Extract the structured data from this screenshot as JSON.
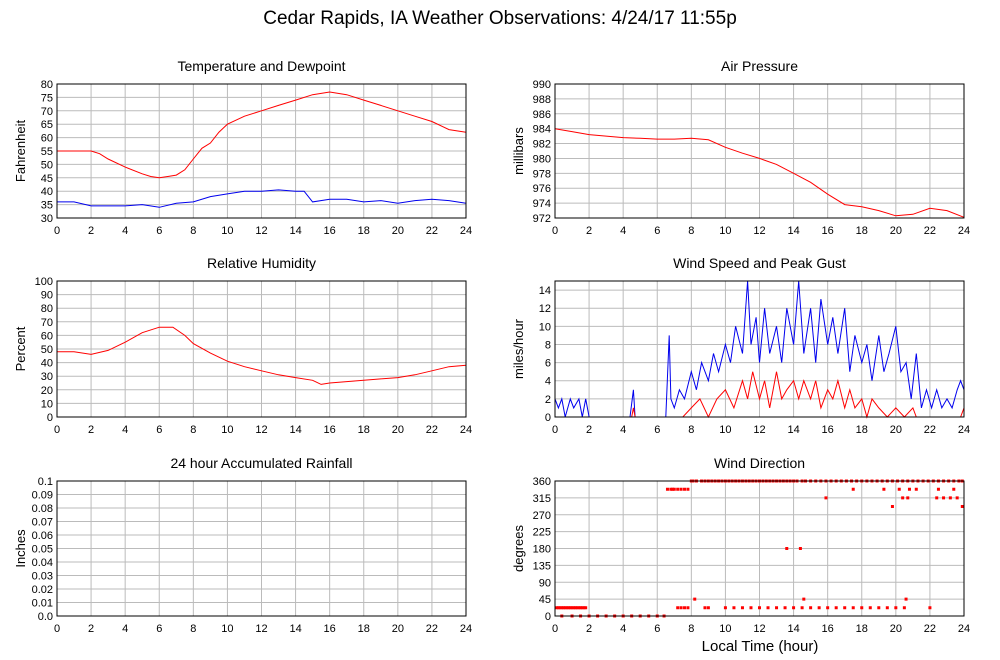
{
  "page": {
    "title": "Cedar Rapids, IA Weather Observations: 4/24/17 11:55p",
    "xlabel": "Local Time (hour)"
  },
  "colors": {
    "red": "#ff0000",
    "blue": "#0000ee",
    "grid": "#bbbbbb",
    "frame": "#000000"
  },
  "chart_data": [
    {
      "id": "temp",
      "type": "line",
      "title": "Temperature and Dewpoint",
      "ylabel": "Fahrenheit",
      "xlim": [
        0,
        24
      ],
      "ylim": [
        30,
        80
      ],
      "yticks": [
        30,
        35,
        40,
        45,
        50,
        55,
        60,
        65,
        70,
        75,
        80
      ],
      "xticks": [
        0,
        2,
        4,
        6,
        8,
        10,
        12,
        14,
        16,
        18,
        20,
        22,
        24
      ],
      "grid": true,
      "series": [
        {
          "color": "red",
          "x": [
            0,
            1,
            2,
            2.5,
            3,
            4,
            5,
            5.5,
            6,
            6.5,
            7,
            7.5,
            8,
            8.5,
            9,
            9.5,
            10,
            11,
            12,
            13,
            14,
            15,
            16,
            17,
            18,
            19,
            20,
            21,
            22,
            23,
            24
          ],
          "y": [
            55,
            55,
            55,
            54,
            52,
            49,
            46.5,
            45.5,
            45,
            45.5,
            46,
            48,
            52,
            56,
            58,
            62,
            65,
            68,
            70,
            72,
            74,
            76,
            77,
            76,
            74,
            72,
            70,
            68,
            66,
            63,
            62
          ]
        },
        {
          "color": "blue",
          "x": [
            0,
            1,
            2,
            3,
            4,
            5,
            6,
            7,
            8,
            9,
            10,
            11,
            12,
            13,
            14,
            14.5,
            15,
            16,
            17,
            18,
            19,
            20,
            21,
            22,
            23,
            24
          ],
          "y": [
            36,
            36,
            34.5,
            34.5,
            34.5,
            35,
            34,
            35.5,
            36,
            38,
            39,
            40,
            40,
            40.5,
            40,
            40,
            36,
            37,
            37,
            36,
            36.5,
            35.5,
            36.5,
            37,
            36.5,
            35.5
          ]
        }
      ]
    },
    {
      "id": "pressure",
      "type": "line",
      "title": "Air Pressure",
      "ylabel": "millibars",
      "xlim": [
        0,
        24
      ],
      "ylim": [
        972,
        990
      ],
      "yticks": [
        972,
        974,
        976,
        978,
        980,
        982,
        984,
        986,
        988,
        990
      ],
      "xticks": [
        0,
        2,
        4,
        6,
        8,
        10,
        12,
        14,
        16,
        18,
        20,
        22,
        24
      ],
      "grid": true,
      "series": [
        {
          "color": "red",
          "x": [
            0,
            1,
            2,
            3,
            4,
            5,
            6,
            7,
            8,
            9,
            10,
            11,
            12,
            13,
            14,
            15,
            16,
            17,
            18,
            19,
            20,
            21,
            22,
            23,
            24
          ],
          "y": [
            984,
            983.6,
            983.2,
            983,
            982.8,
            982.7,
            982.6,
            982.6,
            982.7,
            982.5,
            981.5,
            980.7,
            980,
            979.2,
            978,
            976.8,
            975.2,
            973.8,
            973.5,
            973,
            972.3,
            972.5,
            973.3,
            973,
            972.1
          ]
        }
      ]
    },
    {
      "id": "rh",
      "type": "line",
      "title": "Relative Humidity",
      "ylabel": "Percent",
      "xlim": [
        0,
        24
      ],
      "ylim": [
        0,
        100
      ],
      "yticks": [
        0,
        10,
        20,
        30,
        40,
        50,
        60,
        70,
        80,
        90,
        100
      ],
      "xticks": [
        0,
        2,
        4,
        6,
        8,
        10,
        12,
        14,
        16,
        18,
        20,
        22,
        24
      ],
      "grid": true,
      "series": [
        {
          "color": "red",
          "x": [
            0,
            1,
            2,
            3,
            4,
            5,
            6,
            6.8,
            7.5,
            8,
            9,
            10,
            11,
            12,
            13,
            14,
            15,
            15.5,
            16,
            17,
            18,
            19,
            20,
            21,
            22,
            23,
            24
          ],
          "y": [
            48,
            48,
            46,
            49,
            55,
            62,
            66,
            66,
            60,
            54,
            47,
            41,
            37,
            34,
            31,
            29,
            27,
            24,
            25,
            26,
            27,
            28,
            29,
            31,
            34,
            37,
            38
          ]
        }
      ]
    },
    {
      "id": "wind",
      "type": "line",
      "title": "Wind Speed and Peak Gust",
      "ylabel": "miles/hour",
      "xlim": [
        0,
        24
      ],
      "ylim": [
        0,
        15
      ],
      "yticks": [
        0,
        2,
        4,
        6,
        8,
        10,
        12,
        14
      ],
      "xticks": [
        0,
        2,
        4,
        6,
        8,
        10,
        12,
        14,
        16,
        18,
        20,
        22,
        24
      ],
      "grid": true,
      "series": [
        {
          "color": "blue",
          "x": [
            0,
            0.2,
            0.4,
            0.6,
            0.9,
            1.1,
            1.4,
            1.6,
            1.8,
            2.0,
            4.4,
            4.6,
            4.7,
            6.5,
            6.7,
            6.8,
            7.0,
            7.3,
            7.6,
            8.0,
            8.3,
            8.6,
            9.0,
            9.3,
            9.6,
            10.0,
            10.3,
            10.6,
            11.0,
            11.3,
            11.5,
            11.8,
            12.0,
            12.3,
            12.6,
            13.0,
            13.3,
            13.6,
            14.0,
            14.3,
            14.6,
            15.0,
            15.3,
            15.6,
            16.0,
            16.3,
            16.6,
            17.0,
            17.3,
            17.6,
            18.0,
            18.3,
            18.6,
            19.0,
            19.3,
            19.6,
            20.0,
            20.3,
            20.6,
            20.9,
            21.2,
            21.5,
            21.8,
            22.1,
            22.4,
            22.7,
            23.0,
            23.3,
            23.6,
            23.8,
            24.0
          ],
          "y": [
            2,
            1,
            2,
            0,
            2,
            1,
            2,
            0,
            2,
            0,
            0,
            3,
            0,
            0,
            9,
            2,
            1,
            3,
            2,
            5,
            3,
            6,
            4,
            7,
            5,
            8,
            6,
            10,
            7,
            15,
            8,
            11,
            6,
            12,
            7,
            10,
            6,
            12,
            8,
            15,
            7,
            12,
            6,
            13,
            8,
            11,
            7,
            12,
            5,
            9,
            6,
            8,
            4,
            9,
            5,
            7,
            10,
            5,
            6,
            2,
            7,
            1,
            3,
            1,
            3,
            1,
            2,
            1,
            3,
            4,
            3
          ]
        },
        {
          "color": "red",
          "x": [
            0,
            4.5,
            4.6,
            4.7,
            6.5,
            7.0,
            7.5,
            8.0,
            8.5,
            9.0,
            9.5,
            10.0,
            10.5,
            11.0,
            11.3,
            11.6,
            12.0,
            12.3,
            12.6,
            13.0,
            13.3,
            13.6,
            14.0,
            14.3,
            14.6,
            15.0,
            15.3,
            15.6,
            16.0,
            16.3,
            16.6,
            17.0,
            17.3,
            17.6,
            18.0,
            18.3,
            18.6,
            19.0,
            19.5,
            20.0,
            20.5,
            21.0,
            21.2,
            23.8,
            24.0
          ],
          "y": [
            0,
            0,
            1,
            0,
            0,
            0,
            0,
            1,
            2,
            0,
            2,
            3,
            1,
            4,
            2,
            5,
            2,
            4,
            1,
            5,
            2,
            3,
            4,
            2,
            4,
            2,
            4,
            1,
            3,
            2,
            4,
            1,
            3,
            1,
            2,
            0,
            2,
            1,
            0,
            1,
            0,
            1,
            0,
            0,
            1
          ]
        }
      ]
    },
    {
      "id": "rain",
      "type": "line",
      "title": "24 hour Accumulated Rainfall",
      "ylabel": "Inches",
      "xlim": [
        0,
        24
      ],
      "ylim": [
        0,
        0.1
      ],
      "yticks": [
        0.0,
        0.01,
        0.02,
        0.03,
        0.04,
        0.05,
        0.06,
        0.07,
        0.08,
        0.09,
        0.1
      ],
      "ytick_labels": [
        "0.0",
        "0.01",
        "0.02",
        "0.03",
        "0.04",
        "0.05",
        "0.06",
        "0.07",
        "0.08",
        "0.09",
        "0.1"
      ],
      "xticks": [
        0,
        2,
        4,
        6,
        8,
        10,
        12,
        14,
        16,
        18,
        20,
        22,
        24
      ],
      "grid": true,
      "series": [
        {
          "color": "red",
          "x": [
            0,
            24
          ],
          "y": [
            0,
            0
          ]
        }
      ]
    },
    {
      "id": "dir",
      "type": "scatter",
      "title": "Wind Direction",
      "ylabel": "degrees",
      "xlim": [
        0,
        24
      ],
      "ylim": [
        0,
        360
      ],
      "yticks": [
        0,
        45,
        90,
        135,
        180,
        225,
        270,
        315,
        360
      ],
      "xticks": [
        0,
        2,
        4,
        6,
        8,
        10,
        12,
        14,
        16,
        18,
        20,
        22,
        24
      ],
      "grid": true,
      "series": [
        {
          "color": "red",
          "x": [
            0.1,
            0.2,
            0.3,
            0.4,
            0.5,
            0.6,
            0.7,
            0.8,
            0.9,
            1.0,
            1.1,
            1.2,
            1.3,
            1.4,
            1.5,
            1.6,
            1.7,
            1.8,
            0.4,
            1.0,
            1.5,
            2.0,
            2.5,
            3.0,
            3.5,
            4.0,
            4.5,
            5.0,
            5.5,
            6.0,
            6.4,
            6.6,
            6.8,
            6.9,
            7.0,
            7.2,
            7.4,
            7.6,
            7.8,
            8.0,
            8.1,
            8.3,
            8.6,
            8.8,
            9.0,
            9.2,
            9.4,
            9.6,
            9.8,
            10.0,
            10.2,
            10.4,
            10.6,
            10.8,
            11.0,
            11.2,
            11.4,
            11.6,
            11.8,
            12.0,
            12.2,
            12.4,
            12.6,
            12.8,
            13.0,
            13.2,
            13.4,
            13.6,
            13.8,
            14.0,
            14.2,
            14.5,
            14.7,
            15.0,
            15.3,
            15.6,
            15.9,
            16.2,
            16.5,
            16.8,
            17.1,
            17.4,
            17.7,
            18.0,
            18.3,
            18.6,
            18.9,
            19.2,
            19.5,
            19.8,
            20.1,
            20.4,
            20.7,
            21.0,
            21.3,
            21.6,
            21.9,
            22.2,
            22.5,
            22.8,
            23.1,
            23.4,
            23.7,
            23.9,
            7.2,
            7.4,
            7.6,
            7.8,
            9.0,
            10.0,
            10.5,
            11.0,
            11.5,
            12.0,
            12.5,
            13.0,
            13.5,
            14.0,
            14.5,
            15.0,
            15.5,
            16.0,
            16.5,
            17.0,
            17.5,
            18.0,
            18.5,
            19.0,
            19.5,
            20.0,
            20.5,
            13.6,
            14.4,
            8.2,
            14.6,
            20.6,
            22.0,
            15.9,
            19.8,
            20.4,
            20.7,
            22.4,
            22.8,
            23.2,
            23.6,
            23.9,
            17.5,
            19.3,
            20.2,
            21.2,
            22.5,
            23.4,
            8.8,
            20.8
          ],
          "y": [
            22,
            22,
            22,
            22,
            22,
            22,
            22,
            22,
            22,
            22,
            22,
            22,
            22,
            22,
            22,
            22,
            22,
            22,
            0,
            0,
            0,
            0,
            0,
            0,
            0,
            0,
            0,
            0,
            0,
            0,
            0,
            338,
            338,
            338,
            338,
            338,
            338,
            338,
            338,
            360,
            360,
            360,
            360,
            360,
            360,
            360,
            360,
            360,
            360,
            360,
            360,
            360,
            360,
            360,
            360,
            360,
            360,
            360,
            360,
            360,
            360,
            360,
            360,
            360,
            360,
            360,
            360,
            360,
            360,
            360,
            360,
            360,
            360,
            360,
            360,
            360,
            360,
            360,
            360,
            360,
            360,
            360,
            360,
            360,
            360,
            360,
            360,
            360,
            360,
            360,
            360,
            360,
            360,
            360,
            360,
            360,
            360,
            360,
            360,
            360,
            360,
            360,
            360,
            360,
            22,
            22,
            22,
            22,
            22,
            22,
            22,
            22,
            22,
            22,
            22,
            22,
            22,
            22,
            22,
            22,
            22,
            22,
            22,
            22,
            22,
            22,
            22,
            22,
            22,
            22,
            22,
            180,
            180,
            45,
            45,
            45,
            22,
            315,
            292,
            315,
            315,
            315,
            315,
            315,
            315,
            292,
            338,
            338,
            338,
            338,
            338,
            338,
            22,
            338
          ]
        }
      ]
    }
  ]
}
